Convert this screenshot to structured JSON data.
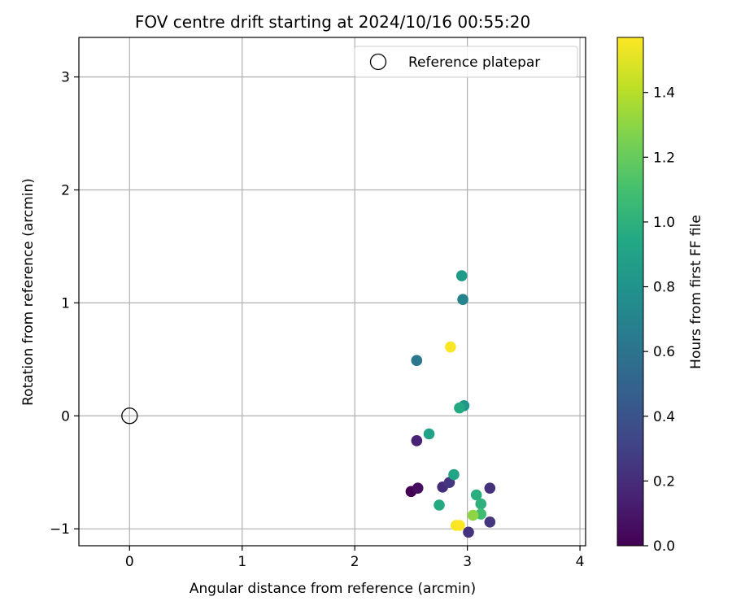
{
  "chart_data": {
    "type": "scatter",
    "title": "FOV centre drift starting at 2024/10/16 00:55:20",
    "xlabel": "Angular distance from reference (arcmin)",
    "ylabel": "Rotation from reference (arcmin)",
    "xlim": [
      -0.45,
      4.05
    ],
    "ylim": [
      -1.15,
      3.35
    ],
    "xticks": [
      0,
      1,
      2,
      3,
      4
    ],
    "yticks": [
      -1,
      0,
      1,
      2,
      3
    ],
    "grid": true,
    "legend": {
      "position": "top-right",
      "entries": [
        {
          "label": "Reference platepar",
          "marker": "open-circle"
        }
      ]
    },
    "reference": {
      "x": 0,
      "y": 0
    },
    "colorbar": {
      "label": "Hours from first FF file",
      "colormap": "viridis",
      "range": [
        0.0,
        1.57
      ],
      "ticks": [
        0.0,
        0.2,
        0.4,
        0.6,
        0.8,
        1.0,
        1.2,
        1.4
      ],
      "tick_labels": [
        "0.0",
        "0.2",
        "0.4",
        "0.6",
        "0.8",
        "1.0",
        "1.2",
        "1.4"
      ]
    },
    "points": [
      {
        "x": 2.5,
        "y": -0.67,
        "t": 0.0
      },
      {
        "x": 2.56,
        "y": -0.64,
        "t": 0.05
      },
      {
        "x": 2.55,
        "y": -0.22,
        "t": 0.15
      },
      {
        "x": 2.78,
        "y": -0.63,
        "t": 0.2
      },
      {
        "x": 2.84,
        "y": -0.59,
        "t": 0.25
      },
      {
        "x": 3.01,
        "y": -1.03,
        "t": 0.22
      },
      {
        "x": 3.2,
        "y": -0.64,
        "t": 0.22
      },
      {
        "x": 3.2,
        "y": -0.94,
        "t": 0.25
      },
      {
        "x": 2.55,
        "y": 0.49,
        "t": 0.62
      },
      {
        "x": 2.96,
        "y": 1.03,
        "t": 0.7
      },
      {
        "x": 2.97,
        "y": 0.09,
        "t": 0.82
      },
      {
        "x": 2.95,
        "y": 1.24,
        "t": 0.85
      },
      {
        "x": 2.66,
        "y": -0.16,
        "t": 0.9
      },
      {
        "x": 2.75,
        "y": -0.79,
        "t": 0.95
      },
      {
        "x": 2.88,
        "y": -0.52,
        "t": 0.92
      },
      {
        "x": 2.93,
        "y": 0.07,
        "t": 0.95
      },
      {
        "x": 3.08,
        "y": -0.7,
        "t": 0.98
      },
      {
        "x": 3.12,
        "y": -0.78,
        "t": 1.0
      },
      {
        "x": 3.12,
        "y": -0.87,
        "t": 1.08
      },
      {
        "x": 3.05,
        "y": -0.88,
        "t": 1.3
      },
      {
        "x": 2.85,
        "y": 0.61,
        "t": 1.56
      },
      {
        "x": 2.9,
        "y": -0.97,
        "t": 1.55
      },
      {
        "x": 2.93,
        "y": -0.97,
        "t": 1.57
      }
    ]
  }
}
